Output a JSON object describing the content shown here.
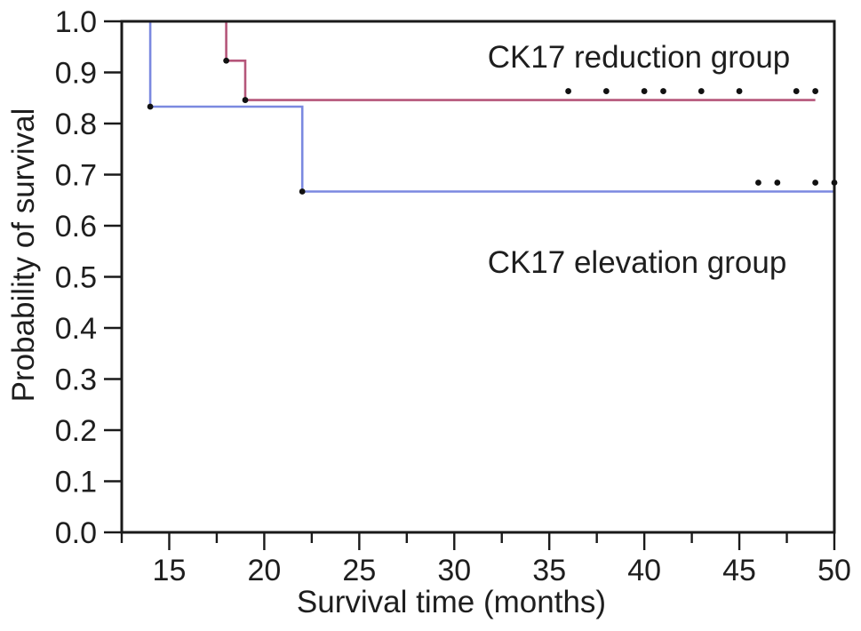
{
  "figure": {
    "background": "#ffffff",
    "frame_color": "#1a1a1a",
    "text_color": "#1e1e1e",
    "marker_color": "#111111"
  },
  "chart_data": {
    "type": "line",
    "subtype": "kaplan-meier-step-survival",
    "title": "",
    "xlabel": "Survival time (months)",
    "ylabel": "Probability of survival",
    "xlim": [
      12.5,
      50
    ],
    "ylim": [
      0.0,
      1.0
    ],
    "grid": false,
    "legend_position": "inline-annotations",
    "xticks_major": [
      15,
      20,
      25,
      30,
      35,
      40,
      45,
      50
    ],
    "xtick_labels": [
      "15",
      "20",
      "25",
      "30",
      "35",
      "40",
      "45",
      "50"
    ],
    "xticks_minor": [
      12.5,
      17.5,
      22.5,
      27.5,
      32.5,
      37.5,
      42.5,
      47.5
    ],
    "yticks": [
      0.0,
      0.1,
      0.2,
      0.3,
      0.4,
      0.5,
      0.6,
      0.7,
      0.8,
      0.9,
      1.0
    ],
    "ytick_labels": [
      "0.0",
      "0.1",
      "0.2",
      "0.3",
      "0.4",
      "0.5",
      "0.6",
      "0.7",
      "0.8",
      "0.9",
      "1.0"
    ],
    "annotations": [
      {
        "text": "CK17 reduction group",
        "x": 39.7,
        "y": 0.93
      },
      {
        "text": "CK17 elevation group",
        "x": 39.6,
        "y": 0.53
      }
    ],
    "series": [
      {
        "name": "CK17 reduction group",
        "color": "#b5567a",
        "step_points": [
          [
            12.5,
            1.0
          ],
          [
            18,
            1.0
          ],
          [
            18,
            0.923
          ],
          [
            19,
            0.923
          ],
          [
            19,
            0.846
          ],
          [
            49,
            0.846
          ]
        ],
        "event_markers": [
          [
            18,
            0.923
          ],
          [
            19,
            0.846
          ]
        ],
        "censor_marker_months": [
          36,
          38,
          40,
          41,
          43,
          45,
          48,
          49
        ],
        "censor_marker_level": 0.846
      },
      {
        "name": "CK17 elevation group",
        "color": "#7b89e0",
        "step_points": [
          [
            12.5,
            1.0
          ],
          [
            14,
            1.0
          ],
          [
            14,
            0.833
          ],
          [
            22,
            0.833
          ],
          [
            22,
            0.667
          ],
          [
            50,
            0.667
          ]
        ],
        "event_markers": [
          [
            14,
            0.833
          ],
          [
            22,
            0.667
          ]
        ],
        "censor_marker_months": [
          46,
          47,
          49,
          50
        ],
        "censor_marker_level": 0.667
      }
    ]
  }
}
